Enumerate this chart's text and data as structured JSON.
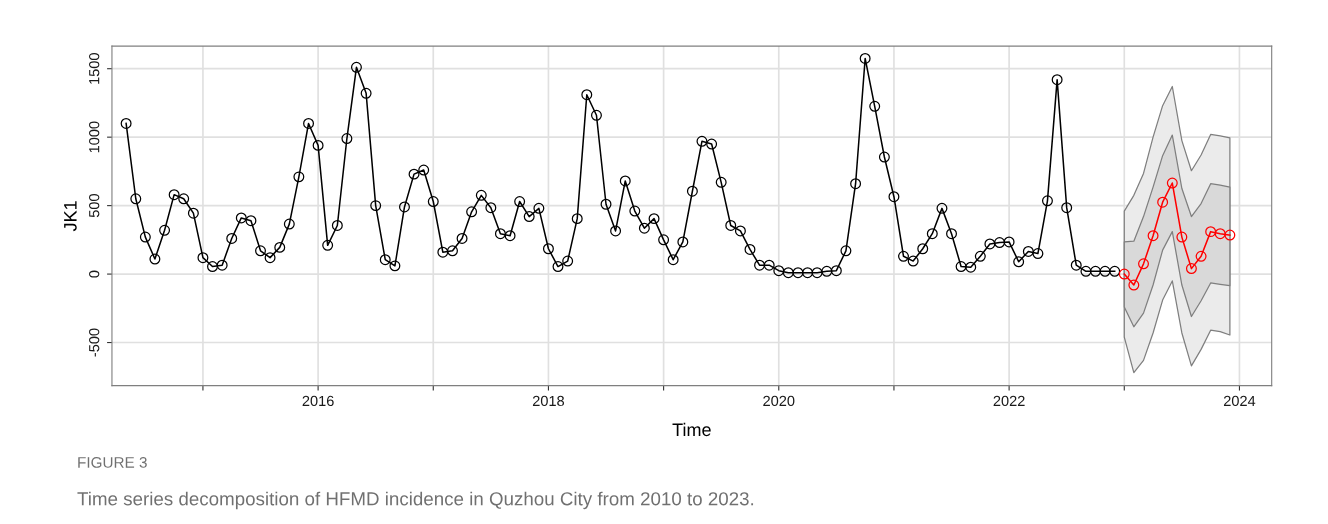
{
  "chart_data": {
    "type": "line",
    "xlabel": "Time",
    "ylabel": "JK1",
    "annotations": [
      "FIGURE 3",
      "Time series decomposition of HFMD incidence in Quzhou City from 2010 to 2023."
    ],
    "xlim": [
      2014.21,
      2024.28
    ],
    "ylim": [
      -815,
      1665
    ],
    "xticks": [
      {
        "value": 2015,
        "label": null
      },
      2016,
      {
        "value": 2017,
        "label": null
      },
      2018,
      {
        "value": 2019,
        "label": null
      },
      2020,
      {
        "value": 2021,
        "label": null
      },
      2022,
      {
        "value": 2023,
        "label": null
      },
      2024
    ],
    "yticks": [
      -500,
      0,
      500,
      1000,
      1500
    ],
    "grid": true,
    "marker": "circle",
    "line_style": "solid",
    "series": [
      {
        "color": "#000000",
        "x": [
          2014.333,
          2014.417,
          2014.5,
          2014.583,
          2014.667,
          2014.75,
          2014.833,
          2014.917,
          2015.0,
          2015.083,
          2015.167,
          2015.25,
          2015.333,
          2015.417,
          2015.5,
          2015.583,
          2015.667,
          2015.75,
          2015.833,
          2015.917,
          2016.0,
          2016.083,
          2016.167,
          2016.25,
          2016.333,
          2016.417,
          2016.5,
          2016.583,
          2016.667,
          2016.75,
          2016.833,
          2016.917,
          2017.0,
          2017.083,
          2017.167,
          2017.25,
          2017.333,
          2017.417,
          2017.5,
          2017.583,
          2017.667,
          2017.75,
          2017.833,
          2017.917,
          2018.0,
          2018.083,
          2018.167,
          2018.25,
          2018.333,
          2018.417,
          2018.5,
          2018.583,
          2018.667,
          2018.75,
          2018.833,
          2018.917,
          2019.0,
          2019.083,
          2019.167,
          2019.25,
          2019.333,
          2019.417,
          2019.5,
          2019.583,
          2019.667,
          2019.75,
          2019.833,
          2019.917,
          2020.0,
          2020.083,
          2020.167,
          2020.25,
          2020.333,
          2020.417,
          2020.5,
          2020.583,
          2020.667,
          2020.75,
          2020.833,
          2020.917,
          2021.0,
          2021.083,
          2021.167,
          2021.25,
          2021.333,
          2021.417,
          2021.5,
          2021.583,
          2021.667,
          2021.75,
          2021.833,
          2021.917,
          2022.0,
          2022.083,
          2022.167,
          2022.25,
          2022.333,
          2022.417,
          2022.5,
          2022.583,
          2022.667,
          2022.75,
          2022.833,
          2022.917
        ],
        "values": [
          1100,
          550,
          270,
          110,
          320,
          580,
          550,
          445,
          120,
          55,
          65,
          260,
          410,
          390,
          170,
          120,
          195,
          365,
          710,
          1100,
          940,
          210,
          355,
          990,
          1510,
          1320,
          500,
          105,
          60,
          490,
          730,
          760,
          530,
          160,
          170,
          260,
          455,
          575,
          485,
          295,
          280,
          530,
          420,
          480,
          185,
          55,
          95,
          405,
          1310,
          1160,
          510,
          315,
          680,
          460,
          335,
          405,
          250,
          105,
          235,
          605,
          970,
          950,
          670,
          355,
          315,
          180,
          65,
          65,
          25,
          10,
          10,
          10,
          10,
          20,
          25,
          170,
          660,
          1575,
          1225,
          855,
          565,
          130,
          95,
          185,
          295,
          480,
          295,
          55,
          50,
          130,
          220,
          230,
          235,
          90,
          165,
          150,
          535,
          1420,
          485,
          65,
          20,
          20,
          20,
          20
        ]
      },
      {
        "color": "#bdbdbd",
        "x": [
          2023.0,
          2023.083,
          2023.167,
          2023.25,
          2023.333,
          2023.417,
          2023.5,
          2023.583,
          2023.667,
          2023.75,
          2023.833,
          2023.917
        ],
        "values": [
          null,
          null,
          null,
          null,
          null,
          null,
          null,
          null,
          null,
          null,
          null,
          null
        ],
        "lower": [
          -460,
          -720,
          -630,
          -430,
          -190,
          -50,
          -430,
          -670,
          -550,
          -410,
          -420,
          -445
        ],
        "upper": [
          460,
          575,
          735,
          1000,
          1230,
          1370,
          975,
          755,
          870,
          1020,
          1010,
          995
        ]
      },
      {
        "color": "#ff0000",
        "x": [
          2023.0,
          2023.083,
          2023.167,
          2023.25,
          2023.333,
          2023.417,
          2023.5,
          2023.583,
          2023.667,
          2023.75,
          2023.833,
          2023.917
        ],
        "values": [
          0,
          -80,
          75,
          280,
          525,
          665,
          270,
          40,
          130,
          310,
          295,
          285
        ],
        "lower": [
          -240,
          -385,
          -285,
          -80,
          175,
          310,
          -80,
          -310,
          -195,
          -65,
          -75,
          -85
        ],
        "upper": [
          235,
          240,
          420,
          635,
          865,
          1015,
          625,
          420,
          515,
          660,
          650,
          635
        ]
      }
    ]
  }
}
